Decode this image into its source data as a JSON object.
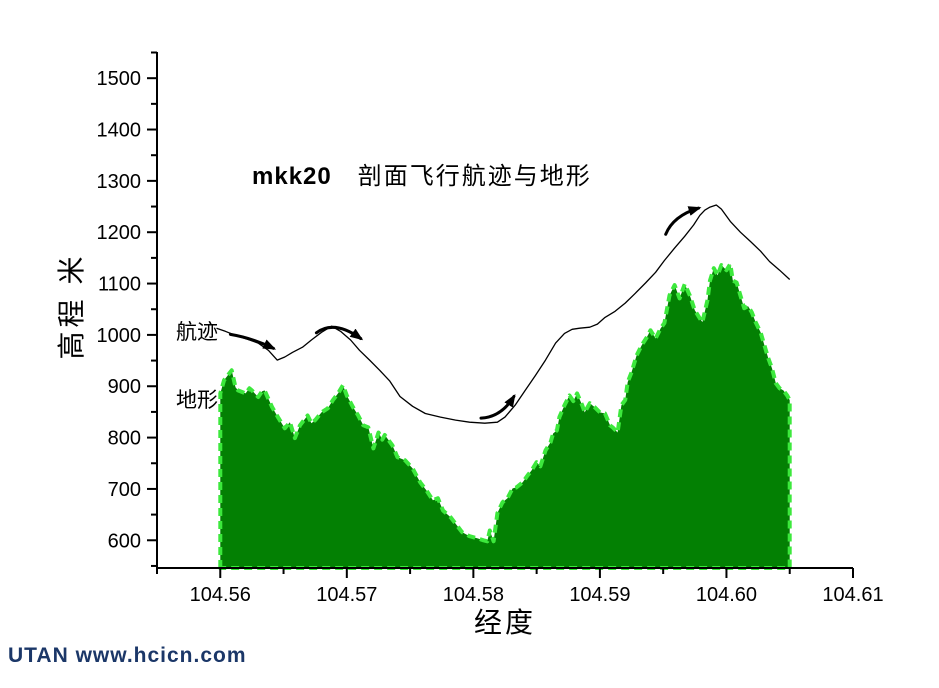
{
  "watermark": {
    "text": "UTAN  www.hcicn.com",
    "color": "#1b3768"
  },
  "chart_data": {
    "type": "area",
    "title_prefix": "mkk20",
    "title": "剖面飞行航迹与地形",
    "xlabel": "经度",
    "ylabel": "高程 米",
    "xlim": [
      104.555,
      104.61
    ],
    "ylim": [
      546,
      1551
    ],
    "grid": false,
    "legend_position": "none",
    "x_ticks": [
      104.56,
      104.57,
      104.58,
      104.59,
      104.6,
      104.61
    ],
    "x_tick_labels": [
      "104.56",
      "104.57",
      "104.58",
      "104.59",
      "104.60",
      "104.61"
    ],
    "x_minor_ticks": [
      104.555,
      104.565,
      104.575,
      104.585,
      104.595,
      104.605
    ],
    "y_ticks": [
      600,
      700,
      800,
      900,
      1000,
      1100,
      1200,
      1300,
      1400,
      1500
    ],
    "y_tick_labels": [
      "600",
      "700",
      "800",
      "900",
      "1000",
      "1100",
      "1200",
      "1300",
      "1400",
      "1500"
    ],
    "y_minor_ticks": [
      550,
      650,
      750,
      850,
      950,
      1050,
      1150,
      1250,
      1350,
      1450,
      1550
    ],
    "colors": {
      "terrain_fill": "#038003",
      "terrain_edge": "#3ce83c",
      "track_line": "#000000",
      "axis": "#000000"
    },
    "series": [
      {
        "name": "地形",
        "type": "area",
        "points": [
          [
            104.56,
            886
          ],
          [
            104.5603,
            912
          ],
          [
            104.5609,
            931
          ],
          [
            104.5612,
            898
          ],
          [
            104.5614,
            892
          ],
          [
            104.562,
            886
          ],
          [
            104.5623,
            896
          ],
          [
            104.5625,
            892
          ],
          [
            104.563,
            879
          ],
          [
            104.5633,
            890
          ],
          [
            104.5635,
            892
          ],
          [
            104.5641,
            859
          ],
          [
            104.5646,
            838
          ],
          [
            104.5651,
            818
          ],
          [
            104.5655,
            830
          ],
          [
            104.5659,
            799
          ],
          [
            104.5663,
            824
          ],
          [
            104.5669,
            843
          ],
          [
            104.5672,
            828
          ],
          [
            104.5675,
            834
          ],
          [
            104.568,
            849
          ],
          [
            104.5685,
            857
          ],
          [
            104.5689,
            873
          ],
          [
            104.5693,
            886
          ],
          [
            104.5697,
            902
          ],
          [
            104.57,
            882
          ],
          [
            104.5705,
            859
          ],
          [
            104.5709,
            843
          ],
          [
            104.5713,
            824
          ],
          [
            104.5717,
            820
          ],
          [
            104.5721,
            779
          ],
          [
            104.5725,
            810
          ],
          [
            104.5728,
            796
          ],
          [
            104.573,
            805
          ],
          [
            104.5736,
            785
          ],
          [
            104.574,
            762
          ],
          [
            104.5746,
            756
          ],
          [
            104.5752,
            740
          ],
          [
            104.5758,
            713
          ],
          [
            104.5763,
            697
          ],
          [
            104.5768,
            678
          ],
          [
            104.5772,
            682
          ],
          [
            104.5776,
            658
          ],
          [
            104.5782,
            645
          ],
          [
            104.5787,
            629
          ],
          [
            104.5791,
            616
          ],
          [
            104.5797,
            608
          ],
          [
            104.5803,
            604
          ],
          [
            104.5808,
            600
          ],
          [
            104.5811,
            598
          ],
          [
            104.5813,
            619
          ],
          [
            104.5816,
            598
          ],
          [
            104.5819,
            653
          ],
          [
            104.5823,
            674
          ],
          [
            104.5827,
            682
          ],
          [
            104.5831,
            701
          ],
          [
            104.5834,
            703
          ],
          [
            104.5839,
            713
          ],
          [
            104.5843,
            727
          ],
          [
            104.5846,
            736
          ],
          [
            104.585,
            752
          ],
          [
            104.5853,
            744
          ],
          [
            104.5857,
            775
          ],
          [
            104.5861,
            791
          ],
          [
            104.5863,
            808
          ],
          [
            104.5866,
            814
          ],
          [
            104.5868,
            840
          ],
          [
            104.5872,
            863
          ],
          [
            104.5876,
            882
          ],
          [
            104.5879,
            871
          ],
          [
            104.5882,
            886
          ],
          [
            104.5886,
            863
          ],
          [
            104.5888,
            849
          ],
          [
            104.5892,
            867
          ],
          [
            104.5896,
            859
          ],
          [
            104.59,
            849
          ],
          [
            104.5904,
            847
          ],
          [
            104.5908,
            824
          ],
          [
            104.591,
            820
          ],
          [
            104.5914,
            810
          ],
          [
            104.5917,
            863
          ],
          [
            104.592,
            873
          ],
          [
            104.5922,
            908
          ],
          [
            104.5925,
            927
          ],
          [
            104.5929,
            960
          ],
          [
            104.5933,
            980
          ],
          [
            104.5937,
            995
          ],
          [
            104.594,
            1009
          ],
          [
            104.5944,
            993
          ],
          [
            104.5948,
            1013
          ],
          [
            104.5951,
            1023
          ],
          [
            104.5955,
            1077
          ],
          [
            104.5959,
            1097
          ],
          [
            104.5963,
            1071
          ],
          [
            104.5967,
            1099
          ],
          [
            104.5971,
            1077
          ],
          [
            104.5975,
            1048
          ],
          [
            104.5979,
            1032
          ],
          [
            104.5981,
            1025
          ],
          [
            104.5985,
            1068
          ],
          [
            104.5987,
            1106
          ],
          [
            104.599,
            1130
          ],
          [
            104.5993,
            1116
          ],
          [
            104.5996,
            1136
          ],
          [
            104.6,
            1126
          ],
          [
            104.6003,
            1138
          ],
          [
            104.6005,
            1106
          ],
          [
            104.6008,
            1102
          ],
          [
            104.6011,
            1077
          ],
          [
            104.6014,
            1052
          ],
          [
            104.6017,
            1056
          ],
          [
            104.602,
            1044
          ],
          [
            104.6023,
            1025
          ],
          [
            104.6027,
            1005
          ],
          [
            104.603,
            980
          ],
          [
            104.6033,
            955
          ],
          [
            104.6036,
            935
          ],
          [
            104.6039,
            906
          ],
          [
            104.6042,
            896
          ],
          [
            104.6045,
            892
          ],
          [
            104.6048,
            882
          ],
          [
            104.605,
            873
          ]
        ]
      },
      {
        "name": "航迹",
        "type": "line",
        "points": [
          [
            104.5597,
            1013
          ],
          [
            104.5604,
            1007
          ],
          [
            104.5612,
            999
          ],
          [
            104.5621,
            992
          ],
          [
            104.563,
            984
          ],
          [
            104.5638,
            970
          ],
          [
            104.5645,
            951
          ],
          [
            104.5651,
            957
          ],
          [
            104.5657,
            966
          ],
          [
            104.5665,
            976
          ],
          [
            104.5672,
            990
          ],
          [
            104.568,
            1005
          ],
          [
            104.5688,
            1017
          ],
          [
            104.5695,
            1007
          ],
          [
            104.5703,
            990
          ],
          [
            104.571,
            970
          ],
          [
            104.5718,
            951
          ],
          [
            104.5726,
            931
          ],
          [
            104.5734,
            910
          ],
          [
            104.5742,
            880
          ],
          [
            104.5752,
            861
          ],
          [
            104.5762,
            847
          ],
          [
            104.5774,
            840
          ],
          [
            104.5786,
            834
          ],
          [
            104.5797,
            830
          ],
          [
            104.5809,
            828
          ],
          [
            104.5819,
            830
          ],
          [
            104.5825,
            840
          ],
          [
            104.5833,
            863
          ],
          [
            104.5841,
            892
          ],
          [
            104.5849,
            921
          ],
          [
            104.5857,
            951
          ],
          [
            104.5865,
            984
          ],
          [
            104.5872,
            1003
          ],
          [
            104.5878,
            1011
          ],
          [
            104.5884,
            1013
          ],
          [
            104.5892,
            1015
          ],
          [
            104.5898,
            1021
          ],
          [
            104.5904,
            1034
          ],
          [
            104.5912,
            1046
          ],
          [
            104.592,
            1062
          ],
          [
            104.5928,
            1081
          ],
          [
            104.5936,
            1101
          ],
          [
            104.5944,
            1122
          ],
          [
            104.5951,
            1145
          ],
          [
            104.5959,
            1169
          ],
          [
            104.5967,
            1192
          ],
          [
            104.5974,
            1214
          ],
          [
            104.5979,
            1233
          ],
          [
            104.5983,
            1243
          ],
          [
            104.5987,
            1249
          ],
          [
            104.5992,
            1253
          ],
          [
            104.5996,
            1245
          ],
          [
            104.6003,
            1221
          ],
          [
            104.6011,
            1200
          ],
          [
            104.6019,
            1182
          ],
          [
            104.6027,
            1163
          ],
          [
            104.6034,
            1143
          ],
          [
            104.6042,
            1126
          ],
          [
            104.605,
            1108
          ]
        ]
      }
    ],
    "arrows": [
      {
        "from": [
          104.5608,
          1001
        ],
        "ctrl": [
          104.5625,
          994
        ],
        "to": [
          104.5642,
          974
        ]
      },
      {
        "from": [
          104.5676,
          1004
        ],
        "ctrl": [
          104.569,
          1030
        ],
        "to": [
          104.5711,
          993
        ]
      },
      {
        "from": [
          104.5806,
          838
        ],
        "ctrl": [
          104.5822,
          840
        ],
        "to": [
          104.5832,
          880
        ]
      },
      {
        "from": [
          104.5952,
          1196
        ],
        "ctrl": [
          104.5958,
          1232
        ],
        "to": [
          104.5978,
          1247
        ]
      }
    ]
  }
}
